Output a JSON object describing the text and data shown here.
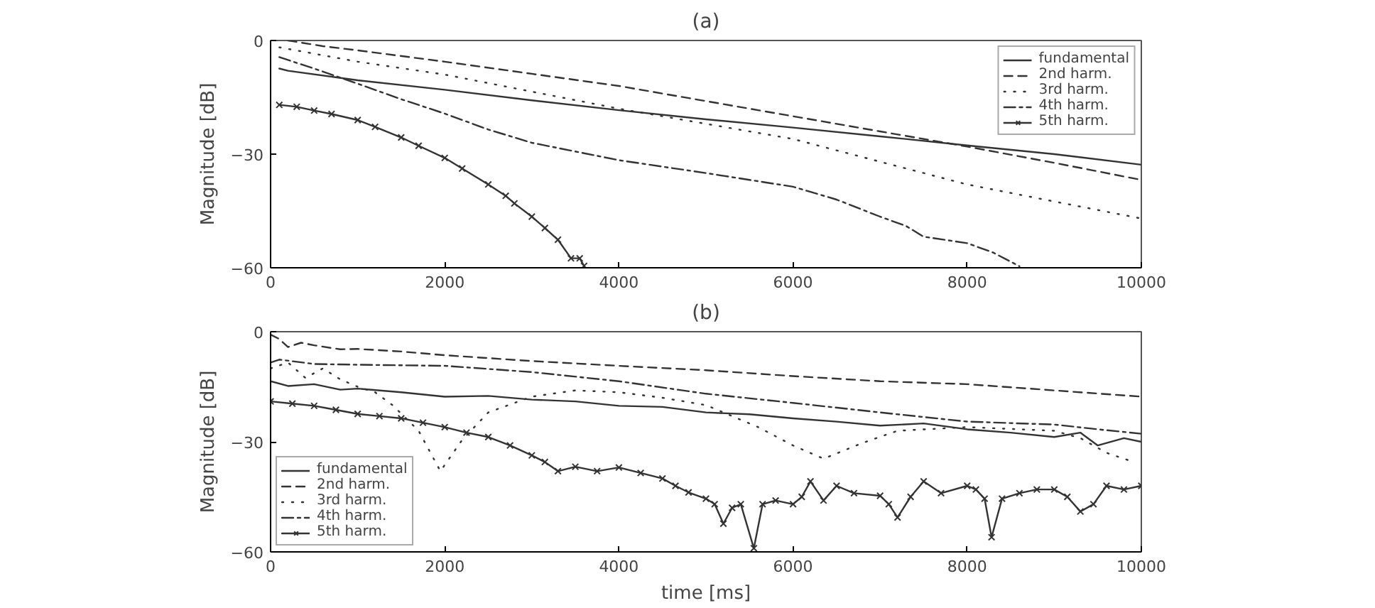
{
  "chart_data": [
    {
      "type": "line",
      "title": "(a)",
      "ylabel": "Magnitude [dB]",
      "xlim": [
        0,
        10000
      ],
      "ylim": [
        -60,
        0
      ],
      "xticks": [
        0,
        2000,
        4000,
        6000,
        8000,
        10000
      ],
      "yticks": [
        -60,
        -30,
        0
      ],
      "grid": false,
      "legend": "top right",
      "series": [
        {
          "name": "fundamental",
          "color": "#333333",
          "line_style": "solid",
          "marker": "none",
          "x": [
            100,
            200,
            1000,
            2000,
            3000,
            4000,
            5000,
            6000,
            7000,
            8000,
            9000,
            10000
          ],
          "values": [
            -7.4,
            -8,
            -10.5,
            -13,
            -15.8,
            -18.4,
            -20.8,
            -23,
            -25.3,
            -27.7,
            -30,
            -32.8
          ]
        },
        {
          "name": "2nd harm.",
          "color": "#333333",
          "line_style": "dashed",
          "marker": "none",
          "x": [
            200,
            600,
            1000,
            2000,
            3000,
            4000,
            5000,
            6000,
            7000,
            8000,
            9000,
            10000
          ],
          "values": [
            0,
            -1.5,
            -2.6,
            -5.6,
            -8.8,
            -12,
            -16,
            -20,
            -24,
            -28,
            -32.3,
            -36.8
          ]
        },
        {
          "name": "3rd harm.",
          "color": "#333333",
          "line_style": "dotted",
          "marker": "none",
          "x": [
            100,
            1000,
            2000,
            3000,
            4000,
            5000,
            6000,
            7000,
            8000,
            9000,
            10000
          ],
          "values": [
            -1.8,
            -5.6,
            -9,
            -13.5,
            -18,
            -22,
            -26,
            -32,
            -38,
            -42.5,
            -47
          ]
        },
        {
          "name": "4th harm.",
          "color": "#333333",
          "line_style": "dashdot",
          "marker": "none",
          "x": [
            100,
            500,
            1000,
            1500,
            2000,
            2500,
            3000,
            4000,
            5000,
            6000,
            6500,
            7000,
            7300,
            7500,
            8000,
            8300,
            8600
          ],
          "values": [
            -4.4,
            -7.4,
            -11.4,
            -15.5,
            -19.3,
            -23.5,
            -27,
            -31.6,
            -35,
            -38.6,
            -42,
            -46.5,
            -49,
            -51.8,
            -53.5,
            -56,
            -59.6
          ]
        },
        {
          "name": "5th harm.",
          "color": "#333333",
          "line_style": "solid",
          "marker": "cross",
          "x": [
            100,
            300,
            500,
            700,
            1000,
            1200,
            1500,
            1700,
            2000,
            2200,
            2500,
            2700,
            2800,
            3000,
            3150,
            3300,
            3450,
            3550,
            3600
          ],
          "values": [
            -17,
            -17.5,
            -18.5,
            -19.4,
            -21,
            -22.8,
            -25.6,
            -27.8,
            -31,
            -33.8,
            -38,
            -41,
            -43,
            -46.5,
            -49.5,
            -52.6,
            -57.5,
            -57.5,
            -59.5
          ]
        }
      ]
    },
    {
      "type": "line",
      "title": "(b)",
      "xlabel": "time [ms]",
      "ylabel": "Magnitude [dB]",
      "xlim": [
        0,
        10000
      ],
      "ylim": [
        -60,
        0
      ],
      "xticks": [
        0,
        2000,
        4000,
        6000,
        8000,
        10000
      ],
      "yticks": [
        -60,
        -30,
        0
      ],
      "grid": false,
      "legend": "bottom left",
      "series": [
        {
          "name": "fundamental",
          "color": "#333333",
          "line_style": "solid",
          "marker": "none",
          "x": [
            0,
            200,
            500,
            800,
            1000,
            1500,
            2000,
            2500,
            3000,
            3500,
            4000,
            4500,
            5000,
            5500,
            6000,
            6500,
            7000,
            7500,
            8000,
            8500,
            9000,
            9300,
            9500,
            9800,
            10000
          ],
          "values": [
            -13.5,
            -14.8,
            -14.3,
            -15.8,
            -15.5,
            -16.5,
            -17.7,
            -17.5,
            -18.5,
            -19,
            -20.2,
            -20.5,
            -22,
            -22.5,
            -23.6,
            -24.5,
            -25.6,
            -25,
            -26.6,
            -27.5,
            -28.7,
            -27.5,
            -31,
            -29,
            -30
          ]
        },
        {
          "name": "2nd harm.",
          "color": "#333333",
          "line_style": "dashed",
          "marker": "none",
          "x": [
            0,
            100,
            200,
            350,
            500,
            800,
            1000,
            1500,
            2000,
            3000,
            4000,
            5000,
            6000,
            7000,
            8000,
            9000,
            10000
          ],
          "values": [
            -0.8,
            -2,
            -4.2,
            -3,
            -3.7,
            -4.8,
            -4.7,
            -5.4,
            -6.4,
            -8,
            -9.3,
            -10.5,
            -12.1,
            -13.5,
            -14.3,
            -16,
            -17.7
          ]
        },
        {
          "name": "3rd harm.",
          "color": "#333333",
          "line_style": "dotted",
          "marker": "none",
          "x": [
            0,
            200,
            400,
            600,
            800,
            1000,
            1200,
            1400,
            1700,
            1950,
            2200,
            2500,
            3000,
            3500,
            4000,
            4500,
            5000,
            5600,
            6000,
            6350,
            6800,
            7200,
            8000,
            8500,
            9000,
            9300,
            9600,
            9900
          ],
          "values": [
            -10,
            -8.4,
            -12.6,
            -10,
            -13,
            -15,
            -16.5,
            -20,
            -27,
            -38,
            -29.5,
            -22,
            -17.7,
            -16,
            -16.5,
            -18,
            -20,
            -26,
            -31,
            -34.6,
            -30.3,
            -27,
            -26,
            -26.5,
            -27,
            -29,
            -33,
            -35.4
          ]
        },
        {
          "name": "4th harm.",
          "color": "#333333",
          "line_style": "dashdot",
          "marker": "none",
          "x": [
            0,
            100,
            500,
            1000,
            2000,
            3000,
            4000,
            5000,
            6000,
            7000,
            8000,
            9000,
            9500,
            10000
          ],
          "values": [
            -8.4,
            -7.6,
            -8.8,
            -9,
            -9.3,
            -11,
            -13.5,
            -16.9,
            -19.4,
            -22,
            -24.5,
            -25.3,
            -26.6,
            -27.8
          ]
        },
        {
          "name": "5th harm.",
          "color": "#333333",
          "line_style": "solid",
          "marker": "cross",
          "x": [
            0,
            250,
            500,
            750,
            1000,
            1250,
            1500,
            1750,
            2000,
            2250,
            2500,
            2750,
            3000,
            3150,
            3300,
            3500,
            3750,
            4000,
            4250,
            4500,
            4650,
            4800,
            5000,
            5100,
            5200,
            5300,
            5400,
            5550,
            5650,
            5800,
            6000,
            6100,
            6200,
            6350,
            6500,
            6700,
            7000,
            7100,
            7200,
            7350,
            7500,
            7700,
            8000,
            8100,
            8200,
            8280,
            8400,
            8600,
            8800,
            9000,
            9150,
            9300,
            9450,
            9600,
            9800,
            10000
          ],
          "values": [
            -19,
            -19.6,
            -20.2,
            -21.3,
            -22.4,
            -23,
            -23.6,
            -24.8,
            -26,
            -27.5,
            -28.7,
            -31,
            -33.7,
            -35.5,
            -38,
            -36.8,
            -38,
            -37,
            -38.5,
            -40,
            -42,
            -43.8,
            -45.5,
            -47,
            -52.3,
            -48,
            -47,
            -59,
            -47,
            -46,
            -47,
            -45,
            -40.8,
            -46,
            -42,
            -44,
            -44.7,
            -47,
            -50.6,
            -45,
            -40.8,
            -44,
            -42,
            -43,
            -45.5,
            -56,
            -45.5,
            -44,
            -43,
            -43,
            -45,
            -49,
            -47,
            -42,
            -43,
            -42
          ]
        }
      ]
    }
  ]
}
